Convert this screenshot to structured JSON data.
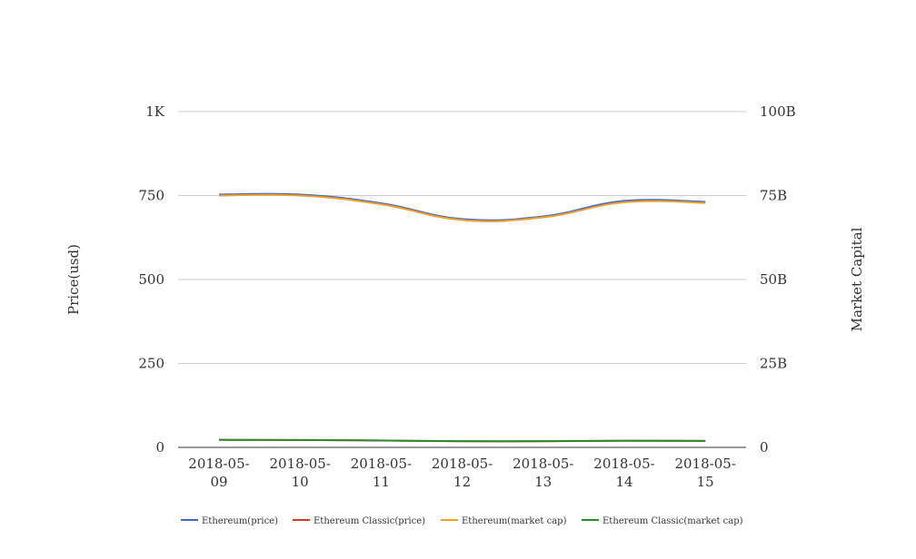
{
  "chart_data": {
    "type": "line",
    "categories": [
      "2018-05-09",
      "2018-05-10",
      "2018-05-11",
      "2018-05-12",
      "2018-05-13",
      "2018-05-14",
      "2018-05-15"
    ],
    "x_tick_labels": [
      [
        "2018-05-",
        "09"
      ],
      [
        "2018-05-",
        "10"
      ],
      [
        "2018-05-",
        "11"
      ],
      [
        "2018-05-",
        "12"
      ],
      [
        "2018-05-",
        "13"
      ],
      [
        "2018-05-",
        "14"
      ],
      [
        "2018-05-",
        "15"
      ]
    ],
    "ylabel": "Price(usd)",
    "ylabel_right": "Market Capital",
    "ylim": [
      0,
      1000
    ],
    "ylim_right": [
      0,
      100000000000
    ],
    "y_ticks": [
      "0",
      "250",
      "500",
      "750",
      "1K"
    ],
    "y_ticks_right": [
      "0",
      "25B",
      "50B",
      "75B",
      "100B"
    ],
    "grid": true,
    "legend_position": "bottom",
    "series": [
      {
        "name": "Ethereum(price)",
        "axis": "left",
        "color": "#4169c6",
        "values": [
          753,
          753,
          727,
          680,
          688,
          734,
          731
        ]
      },
      {
        "name": "Ethereum Classic(price)",
        "axis": "left",
        "color": "#c8431f",
        "values": [
          22.5,
          21.9,
          20.4,
          18.2,
          18.4,
          19.6,
          19.1
        ]
      },
      {
        "name": "Ethereum(market cap)",
        "axis": "right",
        "color": "#f0a12a",
        "values": [
          75000000000,
          75000000000,
          72400000000,
          67700000000,
          68500000000,
          73000000000,
          72800000000
        ]
      },
      {
        "name": "Ethereum Classic(market cap)",
        "axis": "right",
        "color": "#2f8a2f",
        "values": [
          2250000000,
          2200000000,
          2050000000,
          1850000000,
          1870000000,
          1990000000,
          1940000000
        ]
      }
    ]
  }
}
